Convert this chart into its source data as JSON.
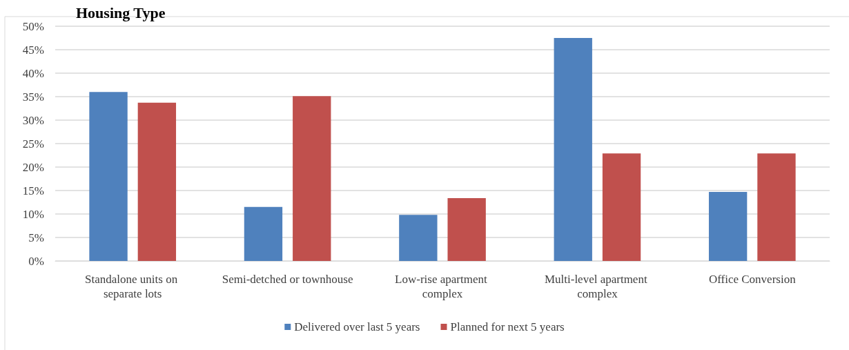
{
  "chart_data": {
    "type": "bar",
    "title": "Housing Type",
    "categories": [
      "Standalone units on separate lots",
      "Semi-detched or townhouse",
      "Low-rise apartment complex",
      "Multi-level apartment complex",
      "Office Conversion"
    ],
    "series": [
      {
        "name": "Delivered over last 5 years",
        "color": "#4f81bd",
        "values": [
          36.0,
          11.5,
          9.8,
          47.5,
          14.7
        ]
      },
      {
        "name": "Planned for next 5 years",
        "color": "#c0504d",
        "values": [
          33.7,
          35.1,
          13.4,
          22.9,
          22.9
        ]
      }
    ],
    "ylim": [
      0,
      50
    ],
    "yticks": [
      {
        "value": 0,
        "label": "0%"
      },
      {
        "value": 5,
        "label": "5%"
      },
      {
        "value": 10,
        "label": "10%"
      },
      {
        "value": 15,
        "label": "15%"
      },
      {
        "value": 20,
        "label": "20%"
      },
      {
        "value": 25,
        "label": "25%"
      },
      {
        "value": 30,
        "label": "30%"
      },
      {
        "value": 35,
        "label": "35%"
      },
      {
        "value": 40,
        "label": "40%"
      },
      {
        "value": 45,
        "label": "45%"
      },
      {
        "value": 50,
        "label": "50%"
      }
    ],
    "grid": "y",
    "legend": "bottom"
  }
}
